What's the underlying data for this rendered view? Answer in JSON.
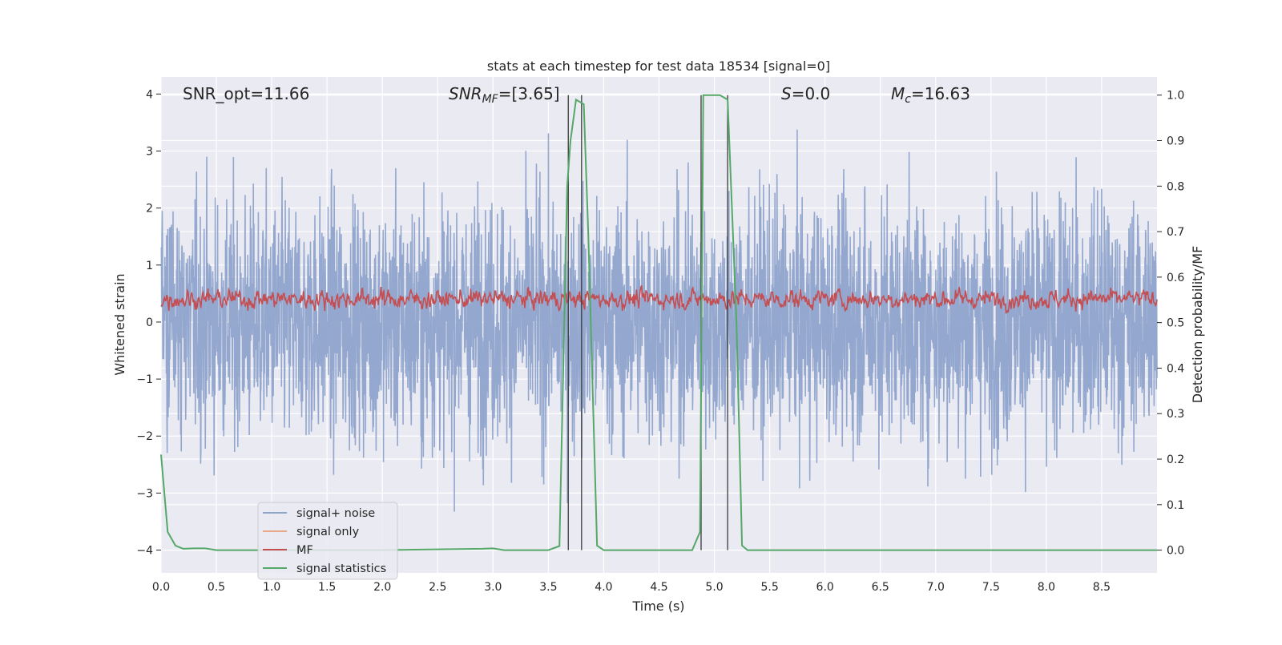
{
  "chart_data": {
    "type": "line",
    "title": "stats at each timestep for test data 18534 [signal=0]",
    "xlabel": "Time (s)",
    "ylabel": "Whitened strain",
    "ylabel_right": "Detection probability/MF",
    "xlim": [
      0.0,
      9.0
    ],
    "ylim": [
      -4.4,
      4.3
    ],
    "ylim_right": [
      -0.05,
      1.04
    ],
    "xticks": [
      "0.0",
      "0.5",
      "1.0",
      "1.5",
      "2.0",
      "2.5",
      "3.0",
      "3.5",
      "4.0",
      "4.5",
      "5.0",
      "5.5",
      "6.0",
      "6.5",
      "7.0",
      "7.5",
      "8.0",
      "8.5"
    ],
    "yticks_left": [
      "4",
      "3",
      "2",
      "1",
      "0",
      "−1",
      "−2",
      "−3",
      "−4"
    ],
    "yticks_right": [
      "1.0",
      "0.9",
      "0.8",
      "0.7",
      "0.6",
      "0.5",
      "0.4",
      "0.3",
      "0.2",
      "0.1",
      "0.0"
    ],
    "grid": true,
    "legend_position": "bottom-left",
    "annotations": {
      "snr_opt": "SNR_opt=11.66",
      "snr_mf_main": "SNR",
      "snr_mf_sub": "MF",
      "snr_mf_value": "=[3.65]",
      "s_label": "S",
      "s_value": "=0.0",
      "mc_main": "M",
      "mc_sub": "c",
      "mc_value": "=16.63"
    },
    "series": [
      {
        "name": "signal+ noise",
        "axis": "left",
        "color": "#8fa4cc",
        "description": "whitened noise, approx. range -3.4 to 3.7, dense"
      },
      {
        "name": "signal only",
        "axis": "left",
        "color": "#e8a98a",
        "values": []
      },
      {
        "name": "MF",
        "axis": "right",
        "color": "#c44e52",
        "description": "matched filter output, approx. 0.51 to 0.62"
      },
      {
        "name": "signal statistics",
        "axis": "right",
        "color": "#55a868",
        "x": [
          0.0,
          0.06,
          0.13,
          0.2,
          0.3,
          0.4,
          0.5,
          1.0,
          2.0,
          2.9,
          3.0,
          3.1,
          3.5,
          3.6,
          3.67,
          3.7,
          3.75,
          3.82,
          3.86,
          3.94,
          4.0,
          4.5,
          4.8,
          4.87,
          4.9,
          4.95,
          5.05,
          5.12,
          5.2,
          5.25,
          5.3,
          6.0,
          7.0,
          8.0,
          9.0
        ],
        "y": [
          0.21,
          0.04,
          0.01,
          0.003,
          0.004,
          0.004,
          0.0,
          0.0,
          0.0,
          0.003,
          0.004,
          0.0,
          0.0,
          0.009,
          0.8,
          0.9,
          0.99,
          0.98,
          0.7,
          0.01,
          0.0,
          0.0,
          0.0,
          0.04,
          1.0,
          1.0,
          1.0,
          0.99,
          0.5,
          0.01,
          0.0,
          0.0,
          0.0,
          0.0,
          0.0
        ]
      }
    ],
    "vertical_lines_x": [
      3.68,
      3.8,
      4.88,
      5.12
    ]
  },
  "legend": [
    {
      "label": "signal+ noise",
      "color": "#8fa4cc"
    },
    {
      "label": "signal only",
      "color": "#e8a98a"
    },
    {
      "label": "MF",
      "color": "#c44e52"
    },
    {
      "label": "signal statistics",
      "color": "#55a868"
    }
  ]
}
